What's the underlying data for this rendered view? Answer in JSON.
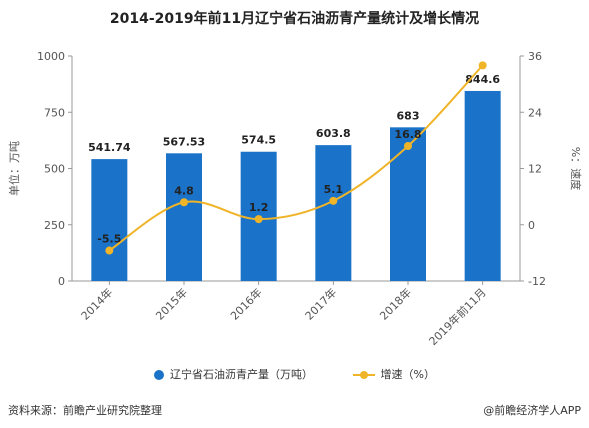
{
  "chart_data": {
    "type": "bar",
    "title": "2014-2019年前11月辽宁省石油沥青产量统计及增长情况",
    "categories": [
      "2014年",
      "2015年",
      "2016年",
      "2017年",
      "2018年",
      "2019年前11月"
    ],
    "series": [
      {
        "name": "辽宁省石油沥青产量（万吨）",
        "type": "bar",
        "axis": "left",
        "values": [
          541.74,
          567.53,
          574.5,
          603.8,
          683,
          844.6
        ],
        "labels": [
          "541.74",
          "567.53",
          "574.5",
          "603.8",
          "683",
          "844.6"
        ]
      },
      {
        "name": "增速（%）",
        "type": "line",
        "axis": "right",
        "values": [
          -5.5,
          4.8,
          1.2,
          5.1,
          16.8,
          34
        ],
        "labels": [
          "-5.5",
          "4.8",
          "1.2",
          "5.1",
          "16.8",
          ""
        ]
      }
    ],
    "ylabel": "单位：万吨",
    "ylim": [
      0,
      1000
    ],
    "yticks": [
      0,
      250,
      500,
      750,
      1000
    ],
    "y2label": "%：速度",
    "y2lim": [
      -12,
      36
    ],
    "y2ticks": [
      -12,
      0,
      12,
      24,
      36
    ],
    "grid": false,
    "legend": "bottom",
    "colors": {
      "bar": "#1a73c8",
      "line": "#f0b429"
    }
  },
  "footer": {
    "source": "资料来源：前瞻产业研究院整理",
    "brand": "@前瞻经济学人APP"
  }
}
